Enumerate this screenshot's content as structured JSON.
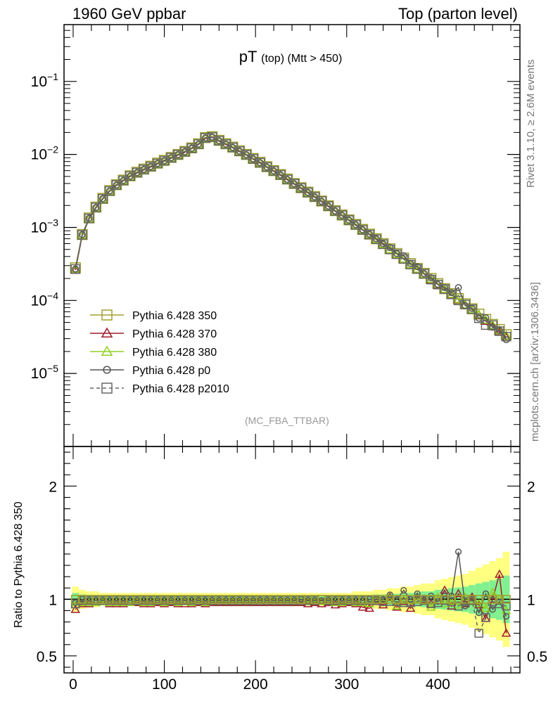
{
  "header": {
    "left": "1960 GeV ppbar",
    "right": "Top (parton level)"
  },
  "side_labels": {
    "rivet": "Rivet 3.1.10, ≥ 2.6M events",
    "mcplots": "mcplots.cern.ch [arXiv:1306.3436]"
  },
  "analysis": "(MC_FBA_TTBAR)",
  "colors": {
    "p350": "#a0a030",
    "p370": "#a01c2c",
    "p380": "#90d020",
    "p0": "#555555",
    "p2010": "#666666",
    "band_yellow": "#ffff80",
    "band_green": "#80f090"
  },
  "chart_data": [
    {
      "type": "line",
      "title": "pT",
      "title_sub": "(top) (Mtt > 450)",
      "x_range": [
        -10,
        490
      ],
      "y_scale": "log",
      "y_range": [
        1e-06,
        0.6
      ],
      "y_tick_labels": [
        "10^-5",
        "10^-4",
        "10^-3",
        "10^-2",
        "10^-1"
      ],
      "y_tick_values": [
        1e-05,
        0.0001,
        0.001,
        0.01,
        0.1
      ],
      "x_tick_labels": [
        "0",
        "100",
        "200",
        "300",
        "400"
      ],
      "x_tick_values": [
        0,
        100,
        200,
        300,
        400
      ],
      "legend_position": "lower-left",
      "x": [
        2.5,
        10,
        17.5,
        25,
        32.5,
        40,
        47.5,
        55,
        62.5,
        70,
        77.5,
        85,
        92.5,
        100,
        107.5,
        115,
        122.5,
        130,
        137.5,
        145,
        152.5,
        160,
        167.5,
        175,
        182.5,
        190,
        197.5,
        205,
        212.5,
        220,
        227.5,
        235,
        242.5,
        250,
        257.5,
        265,
        272.5,
        280,
        287.5,
        295,
        302.5,
        310,
        317.5,
        325,
        332.5,
        340,
        347.5,
        355,
        362.5,
        370,
        377.5,
        385,
        392.5,
        400,
        407.5,
        415,
        422.5,
        430,
        437.5,
        445,
        452.5,
        460,
        467.5,
        475
      ],
      "series": [
        {
          "name": "Pythia 6.428 350",
          "marker": "open-square",
          "dash": false,
          "y": [
            0.00028,
            0.0008,
            0.00135,
            0.0019,
            0.0025,
            0.0032,
            0.00385,
            0.00445,
            0.0051,
            0.0057,
            0.0063,
            0.0069,
            0.0076,
            0.0083,
            0.0091,
            0.01,
            0.011,
            0.0123,
            0.014,
            0.017,
            0.0175,
            0.0156,
            0.014,
            0.0126,
            0.0112,
            0.01,
            0.0088,
            0.0078,
            0.0068,
            0.006,
            0.0053,
            0.0046,
            0.004,
            0.0035,
            0.00305,
            0.00265,
            0.0023,
            0.00198,
            0.0017,
            0.00148,
            0.00127,
            0.0011,
            0.00094,
            0.00081,
            0.0007,
            0.0006,
            0.00051,
            0.00044,
            0.00038,
            0.00032,
            0.000275,
            0.000235,
            0.0002,
            0.00017,
            0.000145,
            0.000124,
            0.000106,
            9e-05,
            7.7e-05,
            6.5e-05,
            5.5e-05,
            4.7e-05,
            4e-05,
            3.4e-05
          ]
        },
        {
          "name": "Pythia 6.428 370",
          "marker": "open-triangle",
          "dash": false,
          "y": [
            0.00026,
            0.00078,
            0.0013,
            0.00185,
            0.00245,
            0.00312,
            0.00375,
            0.00433,
            0.00495,
            0.00555,
            0.00612,
            0.0067,
            0.0074,
            0.00805,
            0.00885,
            0.00975,
            0.0107,
            0.012,
            0.01365,
            0.0165,
            0.0171,
            0.0152,
            0.01365,
            0.0123,
            0.0109,
            0.00975,
            0.0086,
            0.0076,
            0.00665,
            0.00585,
            0.00515,
            0.00448,
            0.0039,
            0.00341,
            0.00297,
            0.00258,
            0.00224,
            0.00193,
            0.00166,
            0.00144,
            0.00124,
            0.00107,
            0.00092,
            0.00079,
            0.00068,
            0.00058,
            0.0005,
            0.00043,
            0.00037,
            0.00031,
            0.000268,
            0.000229,
            0.000195,
            0.000166,
            0.000141,
            0.00012,
            0.000103,
            8.7e-05,
            7.45e-05,
            6.3e-05,
            5.2e-05,
            4.4e-05,
            3.7e-05,
            3.1e-05
          ]
        },
        {
          "name": "Pythia 6.428 380",
          "marker": "open-triangle",
          "dash": false,
          "y": [
            0.00027,
            0.00079,
            0.00132,
            0.00187,
            0.00247,
            0.00315,
            0.0038,
            0.00438,
            0.005,
            0.00562,
            0.0062,
            0.0068,
            0.00748,
            0.00815,
            0.00895,
            0.00985,
            0.01085,
            0.0121,
            0.0138,
            0.0167,
            0.0173,
            0.0154,
            0.0138,
            0.0124,
            0.01105,
            0.00985,
            0.0087,
            0.0077,
            0.00672,
            0.00592,
            0.00522,
            0.00454,
            0.00395,
            0.00345,
            0.00301,
            0.00262,
            0.00227,
            0.00196,
            0.00168,
            0.00146,
            0.00125,
            0.00108,
            0.00093,
            0.0008,
            0.00069,
            0.00059,
            0.0005,
            0.00043,
            0.00037,
            0.00031,
            0.00027,
            0.000231,
            0.000197,
            0.000168,
            0.000143,
            0.000122,
            0.000104,
            8.8e-05,
            7.55e-05,
            6.4e-05,
            5.4e-05,
            4.6e-05,
            3.9e-05,
            3.3e-05
          ]
        },
        {
          "name": "Pythia 6.428 p0",
          "marker": "open-circle",
          "dash": false,
          "y": [
            0.00027,
            0.0008,
            0.00134,
            0.00188,
            0.00248,
            0.00316,
            0.00381,
            0.0044,
            0.00504,
            0.00564,
            0.00623,
            0.00683,
            0.00752,
            0.00821,
            0.00901,
            0.0099,
            0.0109,
            0.01218,
            0.01386,
            0.01683,
            0.01735,
            0.01545,
            0.01386,
            0.01247,
            0.0111,
            0.0099,
            0.00871,
            0.00772,
            0.00673,
            0.00594,
            0.00525,
            0.00455,
            0.00396,
            0.00347,
            0.00302,
            0.00262,
            0.00228,
            0.00196,
            0.00168,
            0.00147,
            0.00126,
            0.00109,
            0.00093,
            0.00081,
            0.0007,
            0.0006,
            0.00053,
            0.00044,
            0.00041,
            0.00032,
            0.00029,
            0.000233,
            0.000205,
            0.000166,
            0.00015,
            0.000128,
            0.00015,
            8.5e-05,
            7.8e-05,
            5.7e-05,
            5.8e-05,
            4.3e-05,
            3.9e-05,
            2.9e-05
          ]
        },
        {
          "name": "Pythia 6.428 p2010",
          "marker": "open-square",
          "dash": true,
          "y": [
            0.00027,
            0.00079,
            0.00133,
            0.00188,
            0.00247,
            0.00316,
            0.00381,
            0.0044,
            0.00505,
            0.00564,
            0.00623,
            0.00683,
            0.00752,
            0.00821,
            0.00901,
            0.0099,
            0.0109,
            0.01218,
            0.01386,
            0.01683,
            0.01732,
            0.01545,
            0.01386,
            0.01247,
            0.0111,
            0.0099,
            0.00871,
            0.00772,
            0.00673,
            0.00594,
            0.00525,
            0.00455,
            0.00396,
            0.00347,
            0.00302,
            0.00262,
            0.0023,
            0.00196,
            0.00168,
            0.00147,
            0.00126,
            0.00109,
            0.00093,
            0.0008,
            0.00069,
            0.00059,
            0.0005,
            0.00043,
            0.00037,
            0.00031,
            0.00027,
            0.000232,
            0.000193,
            0.000165,
            0.000143,
            0.000121,
            0.0001,
            8.8e-05,
            7.6e-05,
            5.7e-05,
            4.6e-05,
            4.6e-05,
            3.8e-05,
            3.2e-05
          ]
        }
      ]
    },
    {
      "type": "line",
      "ylabel": "Ratio to Pythia 6.428 350",
      "x_range": [
        -10,
        490
      ],
      "y_range": [
        0.35,
        2.35
      ],
      "y_tick_labels": [
        "0.5",
        "1",
        "2"
      ],
      "y_tick_values": [
        0.5,
        1,
        2
      ],
      "x_tick_labels": [
        "0",
        "100",
        "200",
        "300",
        "400"
      ],
      "x_tick_values": [
        0,
        100,
        200,
        300,
        400
      ],
      "reference_line": 1,
      "x": [
        2.5,
        10,
        17.5,
        25,
        32.5,
        40,
        47.5,
        55,
        62.5,
        70,
        77.5,
        85,
        92.5,
        100,
        107.5,
        115,
        122.5,
        130,
        137.5,
        145,
        152.5,
        160,
        167.5,
        175,
        182.5,
        190,
        197.5,
        205,
        212.5,
        220,
        227.5,
        235,
        242.5,
        250,
        257.5,
        265,
        272.5,
        280,
        287.5,
        295,
        302.5,
        310,
        317.5,
        325,
        332.5,
        340,
        347.5,
        355,
        362.5,
        370,
        377.5,
        385,
        392.5,
        400,
        407.5,
        415,
        422.5,
        430,
        437.5,
        445,
        452.5,
        460,
        467.5,
        475
      ],
      "band_halfwidth": [
        0.08,
        0.06,
        0.05,
        0.05,
        0.04,
        0.04,
        0.04,
        0.04,
        0.04,
        0.04,
        0.04,
        0.04,
        0.04,
        0.04,
        0.04,
        0.04,
        0.04,
        0.04,
        0.04,
        0.04,
        0.04,
        0.04,
        0.04,
        0.04,
        0.04,
        0.04,
        0.04,
        0.04,
        0.04,
        0.04,
        0.04,
        0.04,
        0.04,
        0.04,
        0.04,
        0.04,
        0.04,
        0.04,
        0.04,
        0.04,
        0.04,
        0.05,
        0.05,
        0.05,
        0.06,
        0.06,
        0.07,
        0.07,
        0.08,
        0.08,
        0.09,
        0.1,
        0.1,
        0.12,
        0.13,
        0.14,
        0.15,
        0.16,
        0.18,
        0.2,
        0.22,
        0.24,
        0.26,
        0.3
      ],
      "series": [
        {
          "name": "Pythia 6.428 370",
          "marker": "open-triangle",
          "dash": false,
          "y": [
            0.91,
            0.96,
            0.96,
            0.97,
            0.98,
            0.96,
            0.96,
            0.96,
            0.97,
            0.97,
            0.96,
            0.96,
            0.97,
            0.96,
            0.97,
            0.96,
            0.96,
            0.96,
            0.97,
            0.96,
            0.97,
            0.97,
            0.97,
            0.97,
            0.97,
            0.97,
            0.97,
            0.97,
            0.97,
            0.97,
            0.97,
            0.97,
            0.97,
            0.97,
            0.96,
            0.97,
            0.96,
            0.97,
            0.95,
            0.96,
            0.97,
            0.96,
            0.93,
            0.92,
            0.98,
            0.95,
            1.02,
            0.93,
            0.98,
            0.92,
            1.02,
            1.0,
            0.96,
            0.99,
            1.08,
            0.94,
            1.05,
            0.96,
            1.02,
            0.95,
            0.83,
            1.0,
            1.22,
            0.7
          ]
        },
        {
          "name": "Pythia 6.428 380",
          "marker": "open-triangle",
          "dash": false,
          "y": [
            0.95,
            0.97,
            0.97,
            0.97,
            0.98,
            0.97,
            0.97,
            0.97,
            0.97,
            0.98,
            0.97,
            0.97,
            0.98,
            0.97,
            0.98,
            0.97,
            0.98,
            0.97,
            0.98,
            0.97,
            0.98,
            0.98,
            0.98,
            0.98,
            0.98,
            0.98,
            0.98,
            0.98,
            0.98,
            0.98,
            0.98,
            0.98,
            0.98,
            0.98,
            0.98,
            0.98,
            0.98,
            0.98,
            0.97,
            0.97,
            0.98,
            0.97,
            0.97,
            0.96,
            0.99,
            0.97,
            1.01,
            0.94,
            1.0,
            0.96,
            1.0,
            0.99,
            0.93,
            1.02,
            0.96,
            0.98,
            0.95,
            1.02,
            0.98,
            0.96,
            0.92,
            1.06,
            1.0,
            0.9
          ]
        },
        {
          "name": "Pythia 6.428 p0",
          "marker": "open-circle",
          "dash": false,
          "y": [
            0.97,
            1.0,
            0.99,
            0.99,
            0.99,
            0.99,
            0.99,
            0.99,
            0.99,
            0.99,
            0.99,
            0.99,
            0.99,
            0.99,
            0.99,
            0.99,
            0.99,
            0.99,
            0.99,
            0.99,
            0.99,
            0.99,
            0.99,
            0.99,
            0.99,
            0.99,
            0.99,
            0.99,
            0.99,
            0.99,
            0.99,
            0.99,
            0.99,
            1.0,
            0.99,
            0.99,
            0.99,
            0.99,
            0.99,
            0.99,
            0.99,
            0.99,
            0.99,
            1.0,
            1.0,
            1.0,
            1.04,
            1.0,
            1.08,
            1.0,
            1.05,
            0.99,
            1.03,
            0.98,
            1.03,
            1.03,
            1.42,
            0.94,
            1.01,
            0.88,
            1.05,
            0.91,
            0.98,
            0.85
          ]
        },
        {
          "name": "Pythia 6.428 p2010",
          "marker": "open-square",
          "dash": true,
          "y": [
            0.96,
            0.99,
            0.99,
            0.99,
            0.99,
            0.99,
            0.99,
            0.99,
            0.99,
            0.99,
            0.99,
            0.99,
            0.99,
            0.99,
            0.99,
            0.99,
            0.99,
            0.99,
            0.99,
            0.99,
            0.99,
            0.99,
            0.99,
            0.99,
            0.99,
            0.99,
            0.99,
            0.99,
            0.99,
            0.99,
            0.99,
            0.99,
            0.99,
            0.99,
            0.99,
            0.99,
            1.0,
            0.99,
            0.99,
            0.99,
            0.99,
            0.99,
            0.99,
            0.99,
            0.99,
            0.98,
            0.98,
            0.98,
            0.97,
            0.97,
            0.98,
            0.99,
            0.96,
            0.97,
            0.99,
            0.98,
            0.94,
            0.98,
            0.99,
            0.7,
            0.84,
            0.98,
            0.96,
            0.94
          ]
        }
      ]
    }
  ]
}
